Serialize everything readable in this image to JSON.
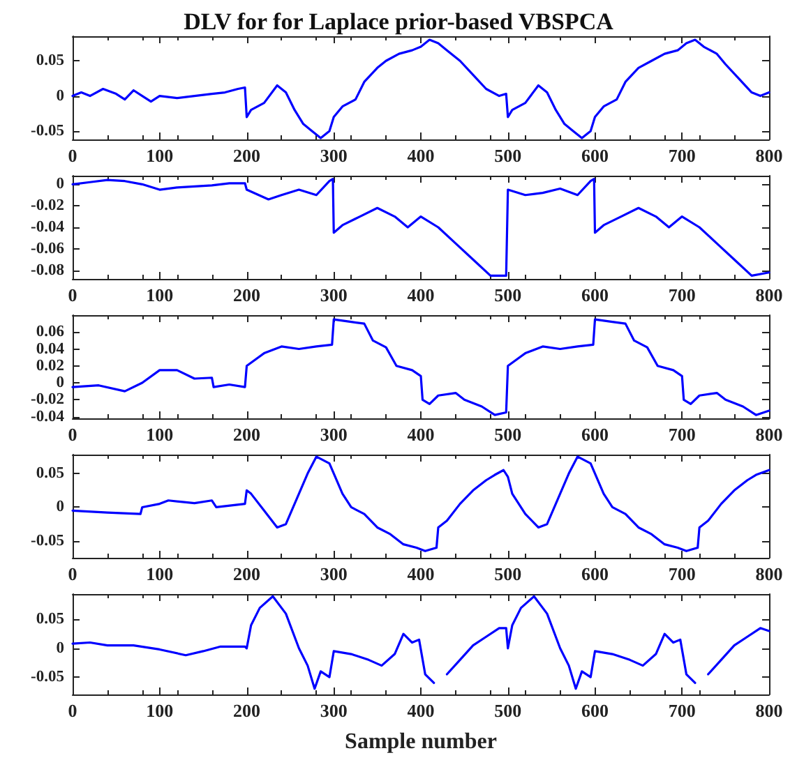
{
  "chart_data": [
    {
      "type": "line",
      "title": "DLV for for Laplace prior-based VBSPCA",
      "xlim": [
        0,
        800
      ],
      "xticks": [
        0,
        100,
        200,
        300,
        400,
        500,
        600,
        700,
        800
      ],
      "ylim": [
        -0.062,
        0.085
      ],
      "yticks": [
        -0.05,
        0,
        0.05
      ],
      "grid": false,
      "series": [
        {
          "color": "#0000ff",
          "x": [
            0,
            10,
            20,
            35,
            50,
            60,
            70,
            80,
            90,
            100,
            120,
            140,
            160,
            175,
            190,
            198,
            200,
            205,
            220,
            235,
            245,
            255,
            265,
            275,
            285,
            295,
            300,
            310,
            325,
            335,
            350,
            360,
            375,
            390,
            400,
            410,
            420,
            430,
            445,
            460,
            475,
            490,
            498,
            500,
            505,
            520,
            535,
            545,
            555,
            565,
            575,
            585,
            595,
            600,
            610,
            625,
            635,
            650,
            665,
            680,
            695,
            705,
            715,
            725,
            740,
            750,
            765,
            780,
            790,
            800
          ],
          "values": [
            0.0,
            0.005,
            0.0,
            0.01,
            0.003,
            -0.005,
            0.008,
            0.0,
            -0.008,
            0,
            -0.003,
            0,
            0.003,
            0.005,
            0.01,
            0.012,
            -0.03,
            -0.02,
            -0.01,
            0.015,
            0.005,
            -0.02,
            -0.04,
            -0.05,
            -0.06,
            -0.05,
            -0.03,
            -0.015,
            -0.005,
            0.02,
            0.04,
            0.05,
            0.06,
            0.065,
            0.07,
            0.08,
            0.075,
            0.065,
            0.05,
            0.03,
            0.01,
            0.0,
            0.003,
            -0.03,
            -0.02,
            -0.01,
            0.015,
            0.005,
            -0.02,
            -0.04,
            -0.05,
            -0.06,
            -0.05,
            -0.03,
            -0.015,
            -0.005,
            0.02,
            0.04,
            0.05,
            0.06,
            0.065,
            0.075,
            0.08,
            0.07,
            0.06,
            0.045,
            0.025,
            0.005,
            0.0,
            0.005
          ]
        }
      ]
    },
    {
      "type": "line",
      "xlim": [
        0,
        800
      ],
      "xticks": [
        0,
        100,
        200,
        300,
        400,
        500,
        600,
        700,
        800
      ],
      "ylim": [
        -0.088,
        0.008
      ],
      "yticks": [
        -0.08,
        -0.06,
        -0.04,
        -0.02,
        0
      ],
      "grid": false,
      "series": [
        {
          "color": "#0000ff",
          "x": [
            0,
            20,
            40,
            60,
            80,
            100,
            120,
            140,
            160,
            180,
            198,
            200,
            225,
            240,
            260,
            280,
            295,
            299,
            300,
            310,
            330,
            350,
            370,
            385,
            400,
            420,
            440,
            460,
            480,
            498,
            500,
            520,
            540,
            560,
            580,
            595,
            599,
            600,
            610,
            630,
            650,
            670,
            685,
            700,
            720,
            740,
            760,
            780,
            800
          ],
          "values": [
            0.0,
            0.002,
            0.004,
            0.003,
            0.0,
            -0.005,
            -0.003,
            -0.002,
            -0.001,
            0.001,
            0.001,
            -0.005,
            -0.014,
            -0.01,
            -0.005,
            -0.01,
            0.003,
            0.005,
            -0.045,
            -0.038,
            -0.03,
            -0.022,
            -0.03,
            -0.04,
            -0.03,
            -0.04,
            -0.055,
            -0.07,
            -0.085,
            -0.085,
            -0.005,
            -0.01,
            -0.008,
            -0.004,
            -0.01,
            0.003,
            0.005,
            -0.045,
            -0.038,
            -0.03,
            -0.022,
            -0.03,
            -0.04,
            -0.03,
            -0.04,
            -0.055,
            -0.07,
            -0.085,
            -0.082
          ]
        }
      ]
    },
    {
      "type": "line",
      "xlim": [
        0,
        800
      ],
      "xticks": [
        0,
        100,
        200,
        300,
        400,
        500,
        600,
        700,
        800
      ],
      "ylim": [
        -0.042,
        0.08
      ],
      "yticks": [
        -0.04,
        -0.02,
        0,
        0.02,
        0.04,
        0.06
      ],
      "grid": false,
      "series": [
        {
          "color": "#0000ff",
          "x": [
            0,
            30,
            60,
            80,
            100,
            120,
            140,
            160,
            162,
            180,
            198,
            200,
            220,
            240,
            260,
            280,
            298,
            300,
            320,
            335,
            345,
            360,
            372,
            390,
            400,
            402,
            410,
            420,
            440,
            450,
            470,
            485,
            498,
            500,
            520,
            540,
            560,
            580,
            598,
            600,
            620,
            635,
            645,
            660,
            672,
            690,
            700,
            702,
            710,
            720,
            740,
            750,
            770,
            785,
            800
          ],
          "values": [
            -0.005,
            -0.003,
            -0.01,
            0.0,
            0.015,
            0.015,
            0.005,
            0.006,
            -0.005,
            -0.002,
            -0.005,
            0.02,
            0.035,
            0.043,
            0.04,
            0.043,
            0.045,
            0.075,
            0.072,
            0.07,
            0.05,
            0.042,
            0.02,
            0.015,
            0.008,
            -0.02,
            -0.025,
            -0.015,
            -0.012,
            -0.02,
            -0.028,
            -0.038,
            -0.035,
            0.02,
            0.035,
            0.043,
            0.04,
            0.043,
            0.045,
            0.075,
            0.072,
            0.07,
            0.05,
            0.042,
            0.02,
            0.015,
            0.008,
            -0.02,
            -0.025,
            -0.015,
            -0.012,
            -0.02,
            -0.028,
            -0.038,
            -0.033
          ]
        }
      ]
    },
    {
      "type": "line",
      "xlim": [
        0,
        800
      ],
      "xticks": [
        0,
        100,
        200,
        300,
        400,
        500,
        600,
        700,
        800
      ],
      "ylim": [
        -0.075,
        0.078
      ],
      "yticks": [
        -0.05,
        0,
        0.05
      ],
      "grid": false,
      "series": [
        {
          "color": "#0000ff",
          "x": [
            0,
            40,
            78,
            80,
            100,
            110,
            140,
            160,
            165,
            198,
            200,
            205,
            220,
            235,
            245,
            260,
            270,
            280,
            295,
            300,
            310,
            320,
            335,
            350,
            365,
            380,
            395,
            405,
            418,
            420,
            430,
            445,
            460,
            475,
            485,
            495,
            500,
            505,
            520,
            535,
            545,
            560,
            570,
            580,
            595,
            600,
            610,
            620,
            635,
            650,
            665,
            680,
            695,
            705,
            718,
            720,
            730,
            745,
            760,
            775,
            785,
            800
          ],
          "values": [
            -0.005,
            -0.008,
            -0.01,
            0.0,
            0.005,
            0.01,
            0.006,
            0.01,
            0.0,
            0.005,
            0.025,
            0.02,
            -0.005,
            -0.03,
            -0.025,
            0.02,
            0.05,
            0.075,
            0.065,
            0.05,
            0.02,
            0.0,
            -0.01,
            -0.03,
            -0.04,
            -0.055,
            -0.06,
            -0.065,
            -0.06,
            -0.03,
            -0.02,
            0.005,
            0.025,
            0.04,
            0.048,
            0.055,
            0.045,
            0.02,
            -0.01,
            -0.03,
            -0.025,
            0.02,
            0.05,
            0.075,
            0.065,
            0.05,
            0.02,
            0.0,
            -0.01,
            -0.03,
            -0.04,
            -0.055,
            -0.06,
            -0.065,
            -0.06,
            -0.03,
            -0.02,
            0.005,
            0.025,
            0.04,
            0.048,
            0.055
          ]
        }
      ]
    },
    {
      "type": "line",
      "xlabel": "Sample number",
      "xlim": [
        0,
        800
      ],
      "xticks": [
        0,
        100,
        200,
        300,
        400,
        500,
        600,
        700,
        800
      ],
      "ylim": [
        -0.08,
        0.094
      ],
      "yticks": [
        -0.05,
        0,
        0.05
      ],
      "grid": false,
      "series": [
        {
          "color": "#0000ff",
          "x": [
            0,
            20,
            40,
            70,
            100,
            130,
            150,
            170,
            198,
            200,
            205,
            215,
            230,
            245,
            260,
            270,
            278,
            285,
            295,
            300,
            320,
            340,
            355,
            370,
            380,
            390,
            398,
            405,
            415,
            420,
            430,
            445,
            460,
            475,
            490,
            498,
            500,
            505,
            515,
            530,
            545,
            560,
            570,
            578,
            585,
            595,
            600,
            620,
            640,
            655,
            670,
            680,
            690,
            698,
            705,
            715,
            720,
            730,
            745,
            760,
            775,
            790,
            800
          ],
          "values": [
            0.008,
            0.01,
            0.005,
            0.005,
            -0.002,
            -0.012,
            -0.005,
            0.003,
            0.003,
            0.0,
            0.04,
            0.07,
            0.09,
            0.06,
            0.0,
            -0.03,
            -0.07,
            -0.04,
            -0.05,
            -0.005,
            -0.01,
            -0.02,
            -0.03,
            -0.01,
            0.025,
            0.01,
            0.015,
            -0.045,
            -0.06,
            null,
            -0.045,
            -0.02,
            0.005,
            0.02,
            0.035,
            0.035,
            0.0,
            0.04,
            0.07,
            0.09,
            0.06,
            0.0,
            -0.03,
            -0.07,
            -0.04,
            -0.05,
            -0.005,
            -0.01,
            -0.02,
            -0.03,
            -0.01,
            0.025,
            0.01,
            0.015,
            -0.045,
            -0.06,
            null,
            -0.045,
            -0.02,
            0.005,
            0.02,
            0.035,
            0.03
          ]
        }
      ]
    }
  ]
}
